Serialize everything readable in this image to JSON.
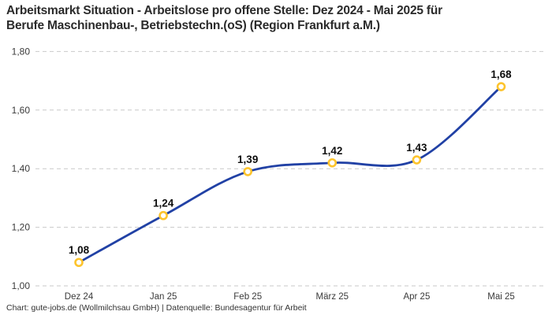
{
  "title": {
    "line1": "Arbeitsmarkt Situation - Arbeitslose pro offene Stelle: Dez 2024 - Mai 2025 für",
    "line2": "Berufe Maschinenbau-, Betriebstechn.(oS) (Region Frankfurt a.M.)"
  },
  "footer": "Chart: gute-jobs.de (Wollmilchsau GmbH) | Datenquelle: Bundesagentur für Arbeit",
  "colors": {
    "line": "#2141a5",
    "marker_ring": "#fdc42d",
    "marker_fill": "#ffffff",
    "gridline": "#c9c9c9",
    "tick_text": "#3a3a3a",
    "title_text": "#2b2b2b"
  },
  "chart_data": {
    "type": "line",
    "title": "Arbeitsmarkt Situation - Arbeitslose pro offene Stelle: Dez 2024 - Mai 2025 für Berufe Maschinenbau-, Betriebstechn.(oS) (Region Frankfurt a.M.)",
    "xlabel": "",
    "ylabel": "",
    "categories": [
      "Dez 24",
      "Jan 25",
      "Feb 25",
      "März 25",
      "Apr 25",
      "Mai 25"
    ],
    "series": [
      {
        "name": "Arbeitslose pro offene Stelle",
        "values": [
          1.08,
          1.24,
          1.39,
          1.42,
          1.43,
          1.68
        ],
        "labels": [
          "1,08",
          "1,24",
          "1,39",
          "1,42",
          "1,43",
          "1,68"
        ]
      }
    ],
    "y_ticks": [
      {
        "value": 1.0,
        "label": "1,00"
      },
      {
        "value": 1.2,
        "label": "1,20"
      },
      {
        "value": 1.4,
        "label": "1,40"
      },
      {
        "value": 1.6,
        "label": "1,60"
      },
      {
        "value": 1.8,
        "label": "1,80"
      }
    ],
    "ylim": [
      1.0,
      1.8
    ],
    "grid": "dashed-horizontal",
    "legend": "none",
    "marker_style": "open-circle"
  }
}
